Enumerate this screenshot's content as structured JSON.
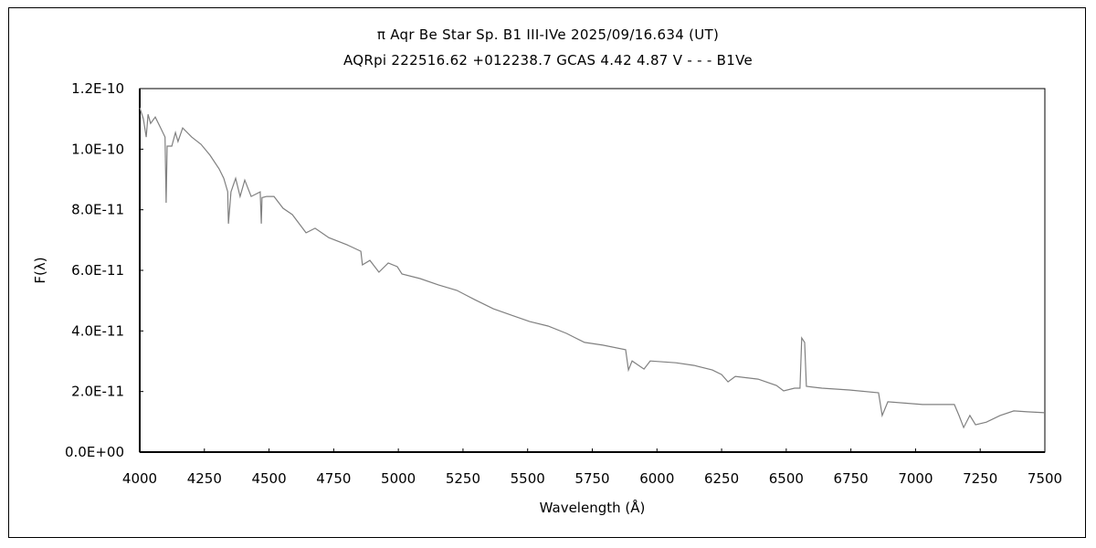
{
  "chart_data": {
    "type": "line",
    "title": "π  Aqr    Be Star    Sp. B1 III-IVe    2025/09/16.634 (UT)",
    "subtitle": "AQRpi 222516.62 +012238.7 GCAS 4.42 4.87 V - - - B1Ve",
    "xlabel": "Wavelength (Å)",
    "ylabel": "F(λ)",
    "xlim": [
      4000,
      7500
    ],
    "ylim": [
      0,
      1.2e-10
    ],
    "y_unit_scale": 1e-11,
    "grid": false,
    "x_ticks": [
      "4000",
      "4250",
      "4500",
      "4750",
      "5000",
      "5250",
      "5500",
      "5750",
      "6000",
      "6250",
      "6500",
      "6750",
      "7000",
      "7250",
      "7500"
    ],
    "y_ticks": [
      "0.0E+00",
      "2.0E-11",
      "4.0E-11",
      "6.0E-11",
      "8.0E-11",
      "1.0E-10",
      "1.2E-10"
    ],
    "line_color": "#808080",
    "series": [
      {
        "name": "spectrum",
        "x": [
          4000,
          4014,
          4025,
          4032,
          4042,
          4060,
          4081,
          4098,
          4102,
          4106,
          4124,
          4138,
          4148,
          4166,
          4201,
          4237,
          4272,
          4307,
          4325,
          4340,
          4343,
          4353,
          4371,
          4388,
          4406,
          4431,
          4466,
          4470,
          4473,
          4491,
          4519,
          4554,
          4590,
          4643,
          4678,
          4731,
          4802,
          4855,
          4861,
          4890,
          4925,
          4961,
          4996,
          5014,
          5084,
          5155,
          5226,
          5296,
          5367,
          5437,
          5508,
          5579,
          5650,
          5685,
          5720,
          5791,
          5879,
          5890,
          5904,
          5950,
          5974,
          6073,
          6144,
          6214,
          6250,
          6275,
          6303,
          6391,
          6462,
          6490,
          6532,
          6553,
          6560,
          6571,
          6578,
          6638,
          6744,
          6857,
          6871,
          6893,
          7027,
          7150,
          7168,
          7186,
          7210,
          7232,
          7274,
          7327,
          7380,
          7433,
          7500
        ],
        "y": [
          11.37,
          11.0,
          10.4,
          11.15,
          10.85,
          11.06,
          10.7,
          10.4,
          8.23,
          10.1,
          10.1,
          10.55,
          10.25,
          10.7,
          10.4,
          10.16,
          9.8,
          9.35,
          9.04,
          8.6,
          7.54,
          8.59,
          9.04,
          8.44,
          8.98,
          8.44,
          8.59,
          7.54,
          8.4,
          8.44,
          8.44,
          8.05,
          7.84,
          7.24,
          7.39,
          7.08,
          6.84,
          6.63,
          6.18,
          6.33,
          5.94,
          6.24,
          6.12,
          5.88,
          5.73,
          5.52,
          5.34,
          5.03,
          4.73,
          4.52,
          4.31,
          4.16,
          3.92,
          3.77,
          3.62,
          3.53,
          3.38,
          2.71,
          3.01,
          2.74,
          3.01,
          2.95,
          2.86,
          2.71,
          2.56,
          2.32,
          2.5,
          2.41,
          2.2,
          2.02,
          2.11,
          2.11,
          3.77,
          3.62,
          2.17,
          2.11,
          2.05,
          1.96,
          1.21,
          1.66,
          1.57,
          1.57,
          1.21,
          0.81,
          1.21,
          0.9,
          0.99,
          1.21,
          1.36,
          1.33,
          1.3
        ]
      }
    ]
  }
}
